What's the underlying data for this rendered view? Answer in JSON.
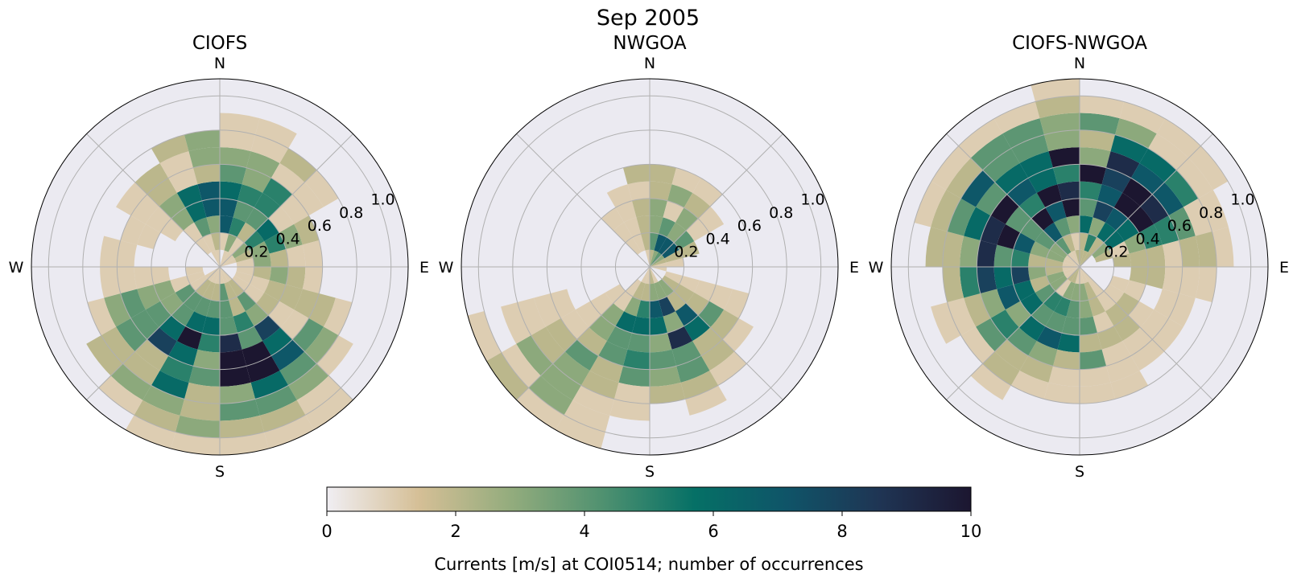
{
  "figure": {
    "title": "Sep 2005"
  },
  "chart_data": [
    {
      "type": "polar-histogram",
      "title": "CIOFS",
      "direction_labels": [
        "N",
        "E",
        "S",
        "W"
      ],
      "radial_ticks": [
        "0.2",
        "0.4",
        "0.6",
        "0.8",
        "1.0"
      ],
      "rmax": 1.1,
      "bin_width_deg": 15,
      "bin_width_speed": 0.1,
      "seed": 7,
      "lobes": [
        {
          "dir": 5,
          "speed": 0.45,
          "spread_dir": 32,
          "spread_speed": 0.2,
          "peak": 6
        },
        {
          "dir": 180,
          "speed": 0.55,
          "spread_dir": 28,
          "spread_speed": 0.25,
          "peak": 6
        },
        {
          "dir": 215,
          "speed": 0.45,
          "spread_dir": 30,
          "spread_speed": 0.22,
          "peak": 4.5
        },
        {
          "dir": 150,
          "speed": 0.55,
          "spread_dir": 22,
          "spread_speed": 0.2,
          "peak": 3.5
        },
        {
          "dir": 60,
          "speed": 0.3,
          "spread_dir": 40,
          "spread_speed": 0.15,
          "peak": 3
        }
      ]
    },
    {
      "type": "polar-histogram",
      "title": "NWGOA",
      "direction_labels": [
        "N",
        "E",
        "S",
        "W"
      ],
      "radial_ticks": [
        "0.2",
        "0.4",
        "0.6",
        "0.8",
        "1.0"
      ],
      "rmax": 1.1,
      "bin_width_deg": 15,
      "bin_width_speed": 0.1,
      "seed": 21,
      "lobes": [
        {
          "dir": 180,
          "speed": 0.45,
          "spread_dir": 25,
          "spread_speed": 0.2,
          "peak": 7
        },
        {
          "dir": 40,
          "speed": 0.15,
          "spread_dir": 25,
          "spread_speed": 0.1,
          "peak": 7
        },
        {
          "dir": 225,
          "speed": 0.85,
          "spread_dir": 18,
          "spread_speed": 0.2,
          "peak": 2.5
        },
        {
          "dir": 145,
          "speed": 0.35,
          "spread_dir": 25,
          "spread_speed": 0.15,
          "peak": 4
        },
        {
          "dir": 5,
          "speed": 0.35,
          "spread_dir": 30,
          "spread_speed": 0.15,
          "peak": 3
        }
      ]
    },
    {
      "type": "polar-histogram",
      "title": "CIOFS-NWGOA",
      "direction_labels": [
        "N",
        "E",
        "S",
        "W"
      ],
      "radial_ticks": [
        "0.2",
        "0.4",
        "0.6",
        "0.8",
        "1.0"
      ],
      "rmax": 1.1,
      "bin_width_deg": 15,
      "bin_width_speed": 0.1,
      "seed": 43,
      "lobes": [
        {
          "dir": 0,
          "speed": 0.5,
          "spread_dir": 45,
          "spread_speed": 0.22,
          "peak": 6
        },
        {
          "dir": 320,
          "speed": 0.5,
          "spread_dir": 35,
          "spread_speed": 0.22,
          "peak": 5
        },
        {
          "dir": 35,
          "speed": 0.45,
          "spread_dir": 30,
          "spread_speed": 0.2,
          "peak": 5.5
        },
        {
          "dir": 200,
          "speed": 0.4,
          "spread_dir": 45,
          "spread_speed": 0.22,
          "peak": 4.5
        },
        {
          "dir": 270,
          "speed": 0.45,
          "spread_dir": 30,
          "spread_speed": 0.2,
          "peak": 3.5
        }
      ]
    }
  ],
  "colorbar": {
    "label": "Currents [m/s] at COI0514; number of occurrences",
    "min": 0,
    "max": 10,
    "ticks": [
      "0",
      "2",
      "4",
      "6",
      "8",
      "10"
    ],
    "colors": [
      "#f0eef3",
      "#d5bf96",
      "#93ac7d",
      "#4f9170",
      "#057066",
      "#0f5468",
      "#1f3554",
      "#1c1630"
    ]
  }
}
